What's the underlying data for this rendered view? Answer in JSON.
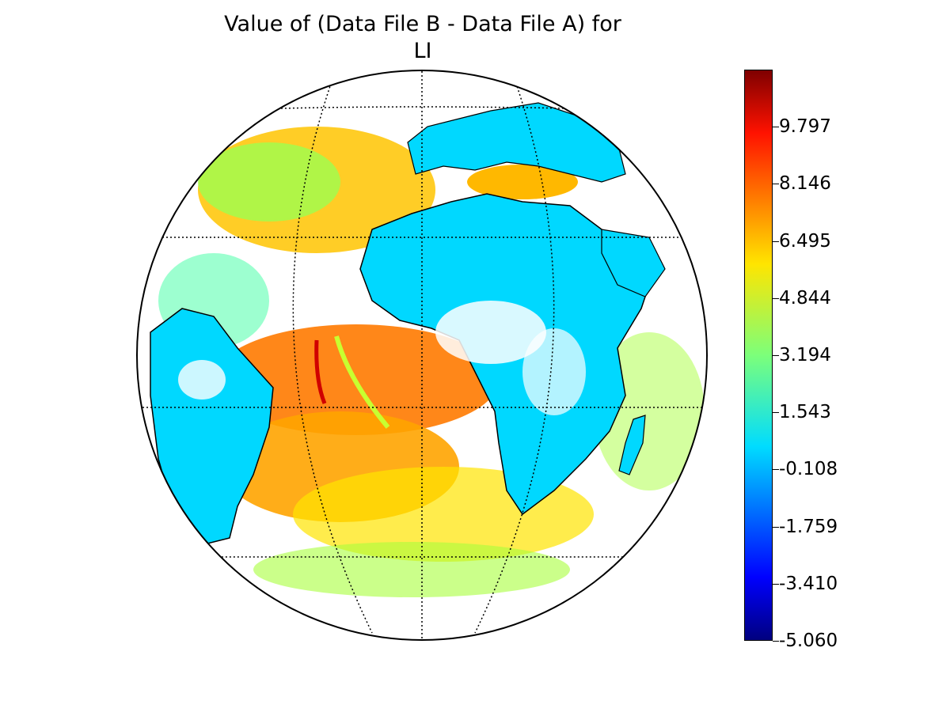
{
  "title_line1": "Value of (Data File B - Data File A) for",
  "title_line2": "LI",
  "colorbar": {
    "colormap": "jet",
    "range": [
      -5.06,
      11.45
    ],
    "ticks": [
      "9.797",
      "8.146",
      "6.495",
      "4.844",
      "3.194",
      "1.543",
      "-0.108",
      "-1.759",
      "-3.410",
      "-5.060"
    ],
    "tick_values": [
      9.797,
      8.146,
      6.495,
      4.844,
      3.194,
      1.543,
      -0.108,
      -1.759,
      -3.41,
      -5.06
    ]
  },
  "map": {
    "projection": "orthographic",
    "land_color": "#00d8ff",
    "ocean_colors": [
      "#ff8c00",
      "#ffb800",
      "#ffe000",
      "#b8ff40",
      "#40ffb0"
    ],
    "graticule": "dotted"
  }
}
